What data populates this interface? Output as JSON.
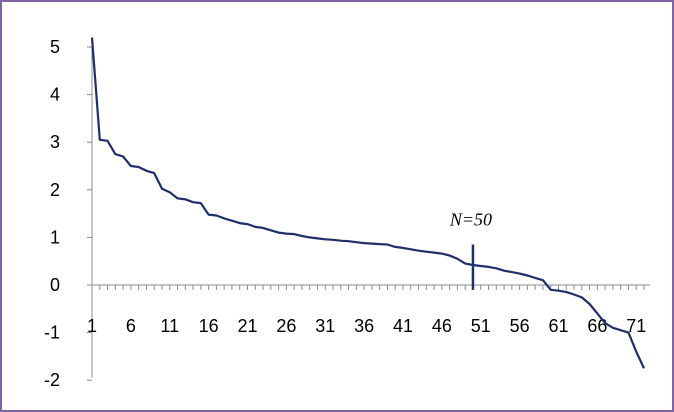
{
  "chart_data": {
    "type": "line",
    "title": "",
    "xlabel": "",
    "ylabel": "",
    "xlim": [
      1,
      72
    ],
    "ylim": [
      -2,
      5
    ],
    "x_tick_labels": [
      "1",
      "6",
      "11",
      "16",
      "21",
      "26",
      "31",
      "36",
      "41",
      "46",
      "51",
      "56",
      "61",
      "66",
      "71"
    ],
    "y_tick_labels": [
      "-2",
      "-1",
      "0",
      "1",
      "2",
      "3",
      "4",
      "5"
    ],
    "grid": false,
    "legend": "none",
    "series": [
      {
        "color": "#1F2F6B",
        "x": [
          1,
          2,
          3,
          4,
          5,
          6,
          7,
          8,
          9,
          10,
          11,
          12,
          13,
          14,
          15,
          16,
          17,
          18,
          19,
          20,
          21,
          22,
          23,
          24,
          25,
          26,
          27,
          28,
          29,
          30,
          31,
          32,
          33,
          34,
          35,
          36,
          37,
          38,
          39,
          40,
          41,
          42,
          43,
          44,
          45,
          46,
          47,
          48,
          49,
          50,
          51,
          52,
          53,
          54,
          55,
          56,
          57,
          58,
          59,
          60,
          61,
          62,
          63,
          64,
          65,
          66,
          67,
          68,
          69,
          70,
          71,
          72
        ],
        "values": [
          5.2,
          3.05,
          3.03,
          2.75,
          2.7,
          2.5,
          2.48,
          2.4,
          2.35,
          2.02,
          1.95,
          1.82,
          1.8,
          1.74,
          1.72,
          1.48,
          1.46,
          1.4,
          1.35,
          1.3,
          1.28,
          1.22,
          1.2,
          1.15,
          1.1,
          1.08,
          1.07,
          1.03,
          1.0,
          0.98,
          0.96,
          0.95,
          0.93,
          0.92,
          0.9,
          0.88,
          0.87,
          0.86,
          0.85,
          0.8,
          0.78,
          0.75,
          0.72,
          0.7,
          0.68,
          0.66,
          0.62,
          0.55,
          0.45,
          0.42,
          0.4,
          0.38,
          0.35,
          0.3,
          0.27,
          0.24,
          0.2,
          0.15,
          0.1,
          -0.1,
          -0.12,
          -0.15,
          -0.2,
          -0.26,
          -0.4,
          -0.6,
          -0.8,
          -0.9,
          -0.95,
          -1.0,
          -1.4,
          -1.75
        ]
      }
    ],
    "annotations": [
      {
        "text": "N=50",
        "x": 50
      }
    ]
  }
}
